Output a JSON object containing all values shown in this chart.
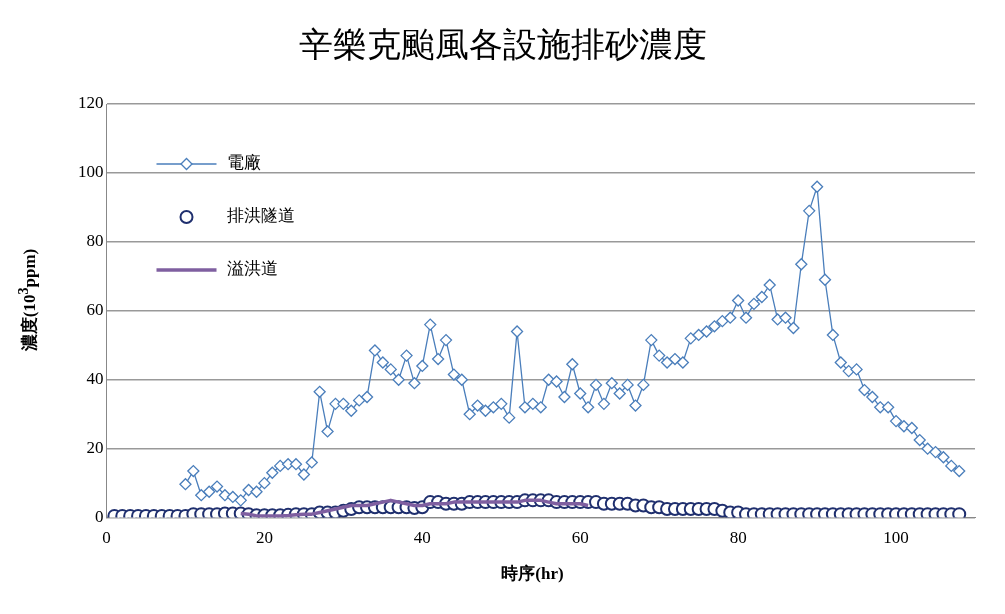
{
  "chart_data": {
    "type": "line",
    "title": "辛樂克颱風各設施排砂濃度",
    "xlabel": "時序(hr)",
    "ylabel": "濃度(10$^{3}$ppm)",
    "x": [
      1,
      2,
      3,
      4,
      5,
      6,
      7,
      8,
      9,
      10,
      11,
      12,
      13,
      14,
      15,
      16,
      17,
      18,
      19,
      20,
      21,
      22,
      23,
      24,
      25,
      26,
      27,
      28,
      29,
      30,
      31,
      32,
      33,
      34,
      35,
      36,
      37,
      38,
      39,
      40,
      41,
      42,
      43,
      44,
      45,
      46,
      47,
      48,
      49,
      50,
      51,
      52,
      53,
      54,
      55,
      56,
      57,
      58,
      59,
      60,
      61,
      62,
      63,
      64,
      65,
      66,
      67,
      68,
      69,
      70,
      71,
      72,
      73,
      74,
      75,
      76,
      77,
      78,
      79,
      80,
      81,
      82,
      83,
      84,
      85,
      86,
      87,
      88,
      89,
      90,
      91,
      92,
      93,
      94,
      95,
      96,
      97,
      98,
      99,
      100,
      101,
      102,
      103,
      104,
      105,
      106,
      107,
      108
    ],
    "series": [
      {
        "name": "電廠",
        "color": "#4a7ebb",
        "marker": "diamond",
        "values": [
          null,
          null,
          null,
          null,
          null,
          null,
          null,
          null,
          null,
          9.7,
          13.5,
          6.5,
          7.5,
          9,
          6.5,
          6,
          5,
          8,
          7.5,
          10,
          13,
          15,
          15.5,
          15.5,
          12.5,
          16,
          36.5,
          25,
          33,
          33,
          31,
          34,
          35,
          48.5,
          45,
          43,
          40,
          47,
          39,
          44,
          56,
          46,
          51.5,
          41.5,
          40,
          30,
          32.5,
          31,
          32,
          33,
          29,
          54,
          32,
          33,
          32,
          40,
          39.5,
          35,
          44.5,
          36,
          32,
          38.5,
          33,
          39,
          36,
          38.5,
          32.5,
          38.5,
          51.5,
          47,
          45,
          46,
          45,
          52,
          53,
          54,
          55.5,
          57,
          58,
          63,
          58,
          62,
          64,
          67.5,
          57.5,
          58,
          55,
          73.5,
          89,
          96,
          69,
          53,
          45,
          42.5,
          43,
          37,
          35,
          32,
          32,
          28,
          26.5,
          26,
          22.5,
          20,
          19,
          17.5,
          15,
          13.5
        ]
      },
      {
        "name": "排洪隧道",
        "color": "#1f2f6e",
        "type": "scatter",
        "marker": "circle",
        "values": [
          0.5,
          0.5,
          0.5,
          0.5,
          0.5,
          0.5,
          0.5,
          0.5,
          0.5,
          0.5,
          1,
          1,
          1,
          1,
          1.2,
          1.2,
          1.2,
          1,
          0.7,
          0.7,
          0.7,
          0.7,
          0.8,
          1,
          1,
          1,
          1.5,
          1.5,
          1.5,
          2,
          2.5,
          3,
          3,
          3,
          3,
          3,
          3,
          3,
          2.8,
          3,
          4.5,
          4.5,
          4,
          4,
          4,
          4.5,
          4.5,
          4.5,
          4.5,
          4.5,
          4.5,
          4.5,
          5,
          5,
          5,
          5,
          4.5,
          4.5,
          4.5,
          4.5,
          4.5,
          4.5,
          4,
          4,
          4,
          4,
          3.5,
          3.5,
          3,
          3,
          2.5,
          2.5,
          2.5,
          2.5,
          2.5,
          2.5,
          2.5,
          2,
          1.5,
          1.5,
          1,
          1,
          1,
          1,
          1,
          1,
          1,
          1,
          1,
          1,
          1,
          1,
          1,
          1,
          1,
          1,
          1,
          1,
          1,
          1,
          1,
          1,
          1,
          1,
          1,
          1,
          1,
          1
        ]
      },
      {
        "name": "溢洪道",
        "color": "#7f5fa0",
        "marker": "none",
        "x": [
          17,
          18,
          19,
          20,
          21,
          22,
          23,
          24,
          25,
          26,
          27,
          28,
          29,
          30,
          31,
          32,
          33,
          34,
          35,
          36,
          37,
          38,
          39,
          40,
          41,
          42,
          43,
          44,
          45,
          46,
          47,
          48,
          49,
          50,
          51,
          52,
          53,
          54,
          55,
          56,
          57,
          58,
          59,
          60,
          61
        ],
        "values": [
          1.2,
          1,
          0.5,
          0.5,
          0.5,
          0.5,
          0.6,
          0.8,
          1,
          1,
          1.5,
          2,
          2.5,
          3,
          3.5,
          3.5,
          3.5,
          4,
          4.5,
          5,
          4.5,
          4,
          3.5,
          3.5,
          4,
          4,
          4,
          4.5,
          4.5,
          4.5,
          4.5,
          4.5,
          4.5,
          4.5,
          4.5,
          4.5,
          5,
          5,
          5,
          4.5,
          4,
          4,
          4,
          4,
          3.5
        ]
      }
    ],
    "xlim": [
      0,
      110
    ],
    "xticks": [
      0,
      20,
      40,
      60,
      80,
      100
    ],
    "ylim": [
      0,
      120
    ],
    "yticks": [
      0,
      20,
      40,
      60,
      80,
      100,
      120
    ],
    "grid": "y",
    "legend": "top left"
  }
}
